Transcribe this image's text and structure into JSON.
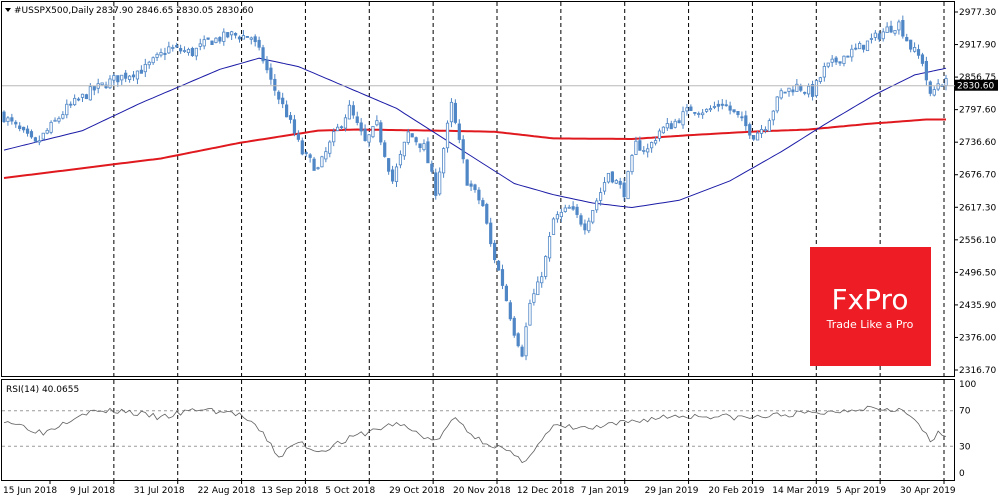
{
  "header": {
    "symbol": "#USSPX500,Daily",
    "ohlc": "2837.90 2846.65 2830.05 2830.60"
  },
  "rsi_header": "RSI(14) 40.0655",
  "last_price_label": "2830.60",
  "logo": {
    "brand": "FxPro",
    "tagline": "Trade Like a Pro",
    "color": "#ee1c25"
  },
  "colors": {
    "candle": "#4f86c6",
    "ma_fast": "#1a1aa6",
    "ma_slow": "#e0191f",
    "rsi_line": "#606060",
    "grid": "#000000",
    "level_line": "#9a9a9a",
    "price_tag_bg": "#000000"
  },
  "chart_data": [
    {
      "type": "candlestick",
      "title": "#USSPX500,Daily",
      "x_tick_labels": [
        "15 Jun 2018",
        "9 Jul 2018",
        "31 Jul 2018",
        "22 Aug 2018",
        "13 Sep 2018",
        "5 Oct 2018",
        "29 Oct 2018",
        "20 Nov 2018",
        "12 Dec 2018",
        "7 Jan 2019",
        "29 Jan 2019",
        "20 Feb 2019",
        "14 Mar 2019",
        "5 Apr 2019",
        "30 Apr 2019"
      ],
      "y_tick_labels": [
        "2977.30",
        "2917.90",
        "2856.75",
        "2797.60",
        "2736.60",
        "2676.70",
        "2617.30",
        "2556.10",
        "2496.50",
        "2435.90",
        "2376.00",
        "2316.70"
      ],
      "ylim": [
        2316.7,
        2977.3
      ],
      "grid": "vertical dashed",
      "last_price": 2830.6,
      "close_anchors": [
        [
          0,
          2775
        ],
        [
          8,
          2725
        ],
        [
          16,
          2790
        ],
        [
          22,
          2820
        ],
        [
          28,
          2842
        ],
        [
          36,
          2862
        ],
        [
          42,
          2898
        ],
        [
          48,
          2890
        ],
        [
          52,
          2910
        ],
        [
          58,
          2922
        ],
        [
          63,
          2918
        ],
        [
          66,
          2878
        ],
        [
          68,
          2838
        ],
        [
          72,
          2780
        ],
        [
          76,
          2710
        ],
        [
          80,
          2680
        ],
        [
          84,
          2740
        ],
        [
          88,
          2790
        ],
        [
          92,
          2728
        ],
        [
          95,
          2760
        ],
        [
          99,
          2660
        ],
        [
          103,
          2745
        ],
        [
          107,
          2720
        ],
        [
          110,
          2642
        ],
        [
          114,
          2795
        ],
        [
          118,
          2660
        ],
        [
          122,
          2615
        ],
        [
          124,
          2545
        ],
        [
          127,
          2475
        ],
        [
          130,
          2390
        ],
        [
          132,
          2352
        ],
        [
          134,
          2440
        ],
        [
          136,
          2470
        ],
        [
          138,
          2520
        ],
        [
          140,
          2590
        ],
        [
          144,
          2610
        ],
        [
          148,
          2580
        ],
        [
          152,
          2640
        ],
        [
          154,
          2675
        ],
        [
          158,
          2640
        ],
        [
          161,
          2725
        ],
        [
          164,
          2715
        ],
        [
          167,
          2750
        ],
        [
          170,
          2760
        ],
        [
          175,
          2790
        ],
        [
          179,
          2785
        ],
        [
          183,
          2800
        ],
        [
          187,
          2774
        ],
        [
          191,
          2742
        ],
        [
          194,
          2760
        ],
        [
          198,
          2818
        ],
        [
          202,
          2830
        ],
        [
          206,
          2818
        ],
        [
          209,
          2860
        ],
        [
          213,
          2880
        ],
        [
          217,
          2895
        ],
        [
          221,
          2912
        ],
        [
          225,
          2932
        ],
        [
          228,
          2942
        ],
        [
          231,
          2900
        ],
        [
          234,
          2875
        ],
        [
          236,
          2810
        ],
        [
          238,
          2836
        ]
      ],
      "moving_average_fast": [
        [
          0,
          2715
        ],
        [
          20,
          2750
        ],
        [
          35,
          2800
        ],
        [
          55,
          2860
        ],
        [
          65,
          2880
        ],
        [
          75,
          2865
        ],
        [
          85,
          2835
        ],
        [
          100,
          2790
        ],
        [
          110,
          2745
        ],
        [
          120,
          2700
        ],
        [
          130,
          2655
        ],
        [
          140,
          2635
        ],
        [
          150,
          2620
        ],
        [
          160,
          2612
        ],
        [
          172,
          2625
        ],
        [
          185,
          2660
        ],
        [
          198,
          2712
        ],
        [
          210,
          2765
        ],
        [
          222,
          2815
        ],
        [
          232,
          2850
        ],
        [
          240,
          2862
        ]
      ],
      "moving_average_slow": [
        [
          0,
          2665
        ],
        [
          40,
          2700
        ],
        [
          60,
          2728
        ],
        [
          80,
          2750
        ],
        [
          90,
          2752
        ],
        [
          110,
          2750
        ],
        [
          125,
          2748
        ],
        [
          140,
          2736
        ],
        [
          160,
          2735
        ],
        [
          175,
          2742
        ],
        [
          190,
          2748
        ],
        [
          205,
          2752
        ],
        [
          220,
          2762
        ],
        [
          235,
          2770
        ],
        [
          240,
          2770
        ]
      ]
    },
    {
      "type": "line",
      "title": "RSI(14) 40.0655",
      "y_tick_labels": [
        "100",
        "70",
        "30",
        "0"
      ],
      "ylim": [
        0,
        100
      ],
      "levels": [
        70,
        30
      ],
      "values": [
        [
          0,
          60
        ],
        [
          10,
          45
        ],
        [
          20,
          68
        ],
        [
          30,
          70
        ],
        [
          40,
          62
        ],
        [
          50,
          72
        ],
        [
          60,
          66
        ],
        [
          66,
          44
        ],
        [
          70,
          18
        ],
        [
          75,
          35
        ],
        [
          80,
          24
        ],
        [
          90,
          42
        ],
        [
          100,
          56
        ],
        [
          110,
          35
        ],
        [
          115,
          62
        ],
        [
          120,
          40
        ],
        [
          128,
          25
        ],
        [
          132,
          12
        ],
        [
          136,
          32
        ],
        [
          140,
          52
        ],
        [
          150,
          50
        ],
        [
          160,
          58
        ],
        [
          170,
          64
        ],
        [
          180,
          64
        ],
        [
          190,
          62
        ],
        [
          200,
          66
        ],
        [
          210,
          68
        ],
        [
          220,
          74
        ],
        [
          228,
          72
        ],
        [
          233,
          56
        ],
        [
          236,
          34
        ],
        [
          238,
          44
        ],
        [
          240,
          40
        ]
      ]
    }
  ]
}
